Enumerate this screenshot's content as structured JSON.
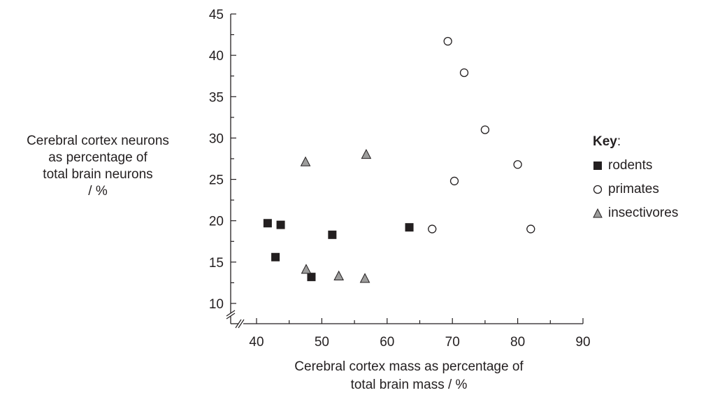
{
  "chart_data": {
    "type": "scatter",
    "xlabel": "Cerebral cortex mass as percentage of\ntotal brain mass / %",
    "ylabel": "Cerebral cortex neurons\nas percentage of\ntotal brain neurons\n/ %",
    "xlim": [
      35,
      90
    ],
    "ylim": [
      10,
      45
    ],
    "xticks": [
      40,
      50,
      60,
      70,
      80,
      90
    ],
    "yticks": [
      10,
      15,
      20,
      25,
      30,
      35,
      40,
      45
    ],
    "axis_break": "both axes, near origin",
    "grid": false,
    "legend": {
      "title": "Key",
      "title_suffix": ":",
      "position": "right"
    },
    "series": [
      {
        "name": "rodents",
        "marker": "filled-square",
        "color": "#231f20",
        "points": [
          {
            "x": 41.7,
            "y": 19.7
          },
          {
            "x": 42.9,
            "y": 15.6
          },
          {
            "x": 43.7,
            "y": 19.5
          },
          {
            "x": 48.4,
            "y": 13.2
          },
          {
            "x": 51.6,
            "y": 18.3
          },
          {
            "x": 63.4,
            "y": 19.2
          }
        ]
      },
      {
        "name": "primates",
        "marker": "open-circle",
        "color": "#231f20",
        "points": [
          {
            "x": 66.9,
            "y": 19.0
          },
          {
            "x": 69.3,
            "y": 41.7
          },
          {
            "x": 70.3,
            "y": 24.8
          },
          {
            "x": 71.8,
            "y": 37.9
          },
          {
            "x": 75.0,
            "y": 31.0
          },
          {
            "x": 80.0,
            "y": 26.8
          },
          {
            "x": 82.0,
            "y": 19.0
          }
        ]
      },
      {
        "name": "insectivores",
        "marker": "grey-triangle",
        "color": "#9d9d9c",
        "points": [
          {
            "x": 47.5,
            "y": 27.1
          },
          {
            "x": 47.6,
            "y": 14.1
          },
          {
            "x": 52.6,
            "y": 13.3
          },
          {
            "x": 56.6,
            "y": 13.0
          },
          {
            "x": 56.8,
            "y": 28.0
          }
        ]
      }
    ]
  }
}
